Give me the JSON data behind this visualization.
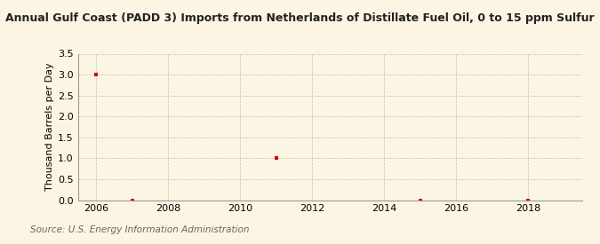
{
  "title": "Annual Gulf Coast (PADD 3) Imports from Netherlands of Distillate Fuel Oil, 0 to 15 ppm Sulfur",
  "ylabel": "Thousand Barrels per Day",
  "source": "Source: U.S. Energy Information Administration",
  "x_years": [
    2006,
    2007,
    2011,
    2015,
    2018
  ],
  "y_values": [
    3.0,
    0.0,
    1.0,
    0.0,
    0.0
  ],
  "xlim": [
    2005.5,
    2019.5
  ],
  "ylim": [
    0.0,
    3.5
  ],
  "yticks": [
    0.0,
    0.5,
    1.0,
    1.5,
    2.0,
    2.5,
    3.0,
    3.5
  ],
  "xticks": [
    2006,
    2008,
    2010,
    2012,
    2014,
    2016,
    2018
  ],
  "marker_color": "#cc0000",
  "marker": "s",
  "marker_size": 3.5,
  "bg_color": "#fdf5e4",
  "grid_color": "#aaaaaa",
  "title_fontsize": 9.0,
  "label_fontsize": 8.0,
  "tick_fontsize": 8.0,
  "source_fontsize": 7.5
}
